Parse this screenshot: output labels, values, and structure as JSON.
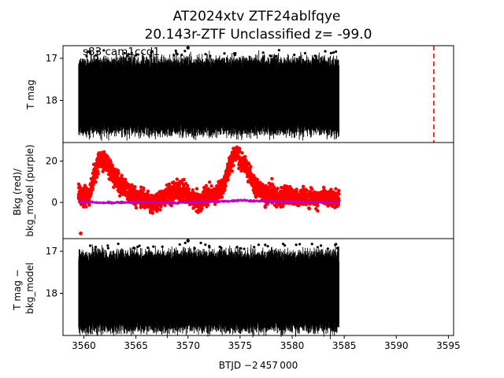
{
  "figure": {
    "title_line1": "AT2024xtv  ZTF24ablfqye",
    "title_line2": "20.143r-ZTF Unclassified z= -99.0",
    "xlabel": "BTJD −2 457 000"
  },
  "chart_data": [
    {
      "type": "scatter",
      "panel": "top",
      "ylabel": "T mag",
      "annotation": "s83 cam1ccd1",
      "xlim": [
        3558.0,
        3595.5
      ],
      "ylim": [
        19.0,
        16.7
      ],
      "y_inverted": true,
      "yticks": [
        17,
        18
      ],
      "xticks": [
        3560,
        3565,
        3570,
        3575,
        3580,
        3585,
        3590,
        3595
      ],
      "data_band": {
        "x_start": 3559.5,
        "x_end": 3584.5,
        "y_median": 17.9,
        "y_min": 17.0,
        "y_max": 18.7
      },
      "outliers": [
        {
          "x": 3570.0,
          "y": 16.75
        }
      ],
      "marker_color": "#000000",
      "vline": {
        "x": 3593.6,
        "color": "#ff0000",
        "style": "dashed"
      }
    },
    {
      "type": "scatter",
      "panel": "middle",
      "ylabel": "Bkg (red)/\nbkg_model (purple)",
      "xlim": [
        3558.0,
        3595.5
      ],
      "ylim": [
        -17.5,
        29.0
      ],
      "yticks": [
        0,
        20
      ],
      "xticks": [
        3560,
        3565,
        3570,
        3575,
        3580,
        3585,
        3590,
        3595
      ],
      "series": [
        {
          "color": "#ff0000",
          "profile_x": [
            3559.5,
            3560.0,
            3560.5,
            3561.0,
            3561.5,
            3562.0,
            3562.5,
            3563.0,
            3563.5,
            3564.0,
            3564.5,
            3565.0,
            3565.5,
            3566.0,
            3566.5,
            3567.0,
            3567.5,
            3568.0,
            3568.5,
            3569.0,
            3569.5,
            3570.0,
            3570.5,
            3571.0,
            3571.5,
            3572.0,
            3572.5,
            3573.0,
            3573.5,
            3574.0,
            3574.5,
            3575.0,
            3575.5,
            3576.0,
            3576.5,
            3577.0,
            3577.5,
            3578.0,
            3578.5,
            3579.0,
            3579.5,
            3580.0,
            3580.5,
            3581.0,
            3581.5,
            3582.0,
            3582.5,
            3583.0,
            3583.5,
            3584.0,
            3584.5
          ],
          "profile_y": [
            5,
            3,
            2,
            13,
            21,
            20,
            16,
            12,
            9,
            6,
            4,
            3,
            2,
            1,
            -1,
            0,
            2,
            4,
            5,
            6,
            5,
            4,
            2,
            0,
            2,
            4,
            3,
            6,
            10,
            18,
            24,
            21,
            17,
            13,
            8,
            6,
            3,
            5,
            3,
            2,
            4,
            3,
            2,
            3,
            2,
            3,
            1,
            3,
            2,
            2,
            1
          ],
          "outliers": [
            {
              "x": 3559.7,
              "y": -15
            }
          ]
        },
        {
          "color": "#bf00bf",
          "profile_x": [
            3559.5,
            3562.0,
            3565.0,
            3568.0,
            3571.0,
            3574.0,
            3575.0,
            3577.0,
            3580.0,
            3584.5
          ],
          "profile_y": [
            0.3,
            -0.2,
            0.2,
            -0.3,
            0.1,
            0.6,
            1.1,
            0.5,
            0.2,
            0.0
          ]
        }
      ]
    },
    {
      "type": "scatter",
      "panel": "bottom",
      "ylabel": "T mag −\nbkg_model",
      "xlim": [
        3558.0,
        3595.5
      ],
      "ylim": [
        19.0,
        16.7
      ],
      "y_inverted": true,
      "yticks": [
        17,
        18
      ],
      "xticks": [
        3560,
        3565,
        3570,
        3575,
        3580,
        3585,
        3590,
        3595
      ],
      "data_band": {
        "x_start": 3559.5,
        "x_end": 3584.5,
        "y_median": 17.95,
        "y_min": 17.0,
        "y_max": 18.8
      },
      "outliers": [
        {
          "x": 3570.0,
          "y": 16.75
        }
      ],
      "marker_color": "#000000"
    }
  ]
}
